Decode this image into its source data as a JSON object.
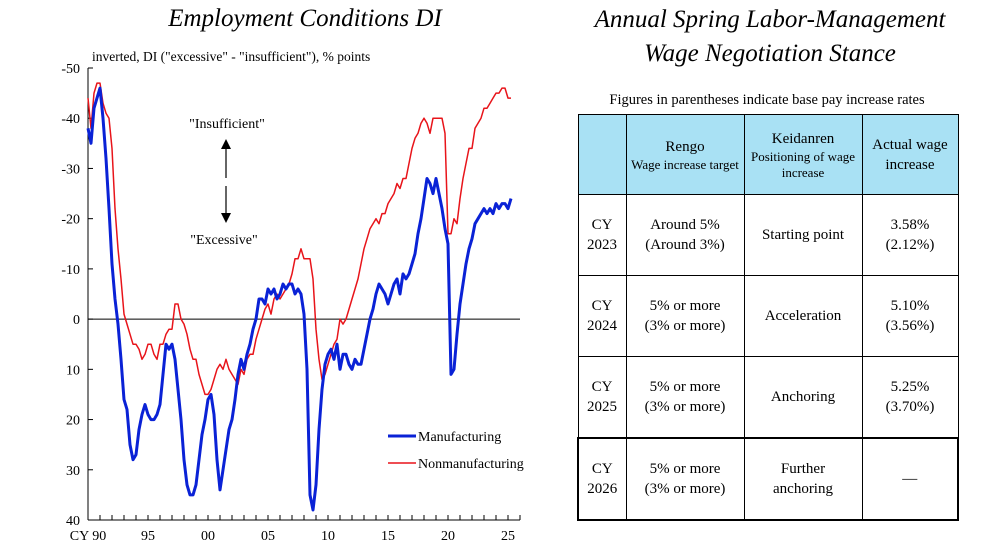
{
  "chart_data": {
    "type": "line",
    "title": "Employment Conditions DI",
    "ylabel": "inverted, DI (\"excessive\" - \"insufficient\"), % points",
    "ylim": [
      -50,
      40
    ],
    "y_inverted": true,
    "yticks": [
      -50,
      -40,
      -30,
      -20,
      -10,
      0,
      10,
      20,
      30,
      40
    ],
    "ytick_labels": [
      "-50",
      "-40",
      "-30",
      "-20",
      "-10",
      "0",
      "10",
      "20",
      "30",
      "40"
    ],
    "xlim": [
      1990,
      2026
    ],
    "xticks": [
      1990,
      1995,
      2000,
      2005,
      2010,
      2015,
      2020,
      2025
    ],
    "xtick_labels": [
      "CY 90",
      "95",
      "00",
      "05",
      "10",
      "15",
      "20",
      "25"
    ],
    "annotations": {
      "insufficient": "\"Insufficient\"",
      "excessive": "\"Excessive\""
    },
    "legend_position": "bottom-right",
    "series": [
      {
        "name": "Manufacturing",
        "color": "#0a22d6",
        "x": [
          1990.0,
          1990.25,
          1990.5,
          1990.75,
          1991.0,
          1991.25,
          1991.5,
          1991.75,
          1992.0,
          1992.25,
          1992.5,
          1992.75,
          1993.0,
          1993.25,
          1993.5,
          1993.75,
          1994.0,
          1994.25,
          1994.5,
          1994.75,
          1995.0,
          1995.25,
          1995.5,
          1995.75,
          1996.0,
          1996.25,
          1996.5,
          1996.75,
          1997.0,
          1997.25,
          1997.5,
          1997.75,
          1998.0,
          1998.25,
          1998.5,
          1998.75,
          1999.0,
          1999.25,
          1999.5,
          1999.75,
          2000.0,
          2000.25,
          2000.5,
          2000.75,
          2001.0,
          2001.25,
          2001.5,
          2001.75,
          2002.0,
          2002.25,
          2002.5,
          2002.75,
          2003.0,
          2003.25,
          2003.5,
          2003.75,
          2004.0,
          2004.25,
          2004.5,
          2004.75,
          2005.0,
          2005.25,
          2005.5,
          2005.75,
          2006.0,
          2006.25,
          2006.5,
          2006.75,
          2007.0,
          2007.25,
          2007.5,
          2007.75,
          2008.0,
          2008.25,
          2008.5,
          2008.75,
          2009.0,
          2009.25,
          2009.5,
          2009.75,
          2010.0,
          2010.25,
          2010.5,
          2010.75,
          2011.0,
          2011.25,
          2011.5,
          2011.75,
          2012.0,
          2012.25,
          2012.5,
          2012.75,
          2013.0,
          2013.25,
          2013.5,
          2013.75,
          2014.0,
          2014.25,
          2014.5,
          2014.75,
          2015.0,
          2015.25,
          2015.5,
          2015.75,
          2016.0,
          2016.25,
          2016.5,
          2016.75,
          2017.0,
          2017.25,
          2017.5,
          2017.75,
          2018.0,
          2018.25,
          2018.5,
          2018.75,
          2019.0,
          2019.25,
          2019.5,
          2019.75,
          2020.0,
          2020.25,
          2020.5,
          2020.75,
          2021.0,
          2021.25,
          2021.5,
          2021.75,
          2022.0,
          2022.25,
          2022.5,
          2022.75,
          2023.0,
          2023.25,
          2023.5,
          2023.75,
          2024.0,
          2024.25,
          2024.5,
          2024.75,
          2025.0,
          2025.25
        ],
        "values": [
          -38,
          -35,
          -42,
          -44,
          -46,
          -40,
          -32,
          -22,
          -11,
          -4,
          1,
          8,
          16,
          18,
          25,
          28,
          27,
          22,
          19,
          17,
          19,
          20,
          20,
          19,
          17,
          11,
          5,
          6,
          5,
          8,
          14,
          20,
          28,
          33,
          35,
          35,
          33,
          28,
          23,
          20,
          16,
          15,
          19,
          28,
          34,
          30,
          26,
          22,
          20,
          16,
          11,
          8,
          10,
          7,
          5,
          2,
          0,
          -4,
          -4,
          -3,
          -6,
          -5,
          -6,
          -4,
          -5,
          -7,
          -6,
          -7,
          -7,
          -5,
          -6,
          -5,
          -1,
          10,
          35,
          38,
          33,
          22,
          14,
          9,
          7,
          6,
          8,
          5,
          10,
          7,
          7,
          9,
          10,
          8,
          9,
          9,
          6,
          3,
          0,
          -2,
          -5,
          -7,
          -6,
          -5,
          -3,
          -5,
          -7,
          -8,
          -5,
          -9,
          -8,
          -9,
          -11,
          -13,
          -17,
          -20,
          -24,
          -28,
          -27,
          -25,
          -28,
          -25,
          -22,
          -18,
          -15,
          11,
          10,
          3,
          -3,
          -7,
          -11,
          -14,
          -16,
          -19,
          -20,
          -21,
          -22,
          -21,
          -22,
          -21,
          -23,
          -22,
          -23,
          -23,
          -22,
          -24
        ]
      },
      {
        "name": "Nonmanufacturing",
        "color": "#e8141a",
        "x": [
          1990.0,
          1990.25,
          1990.5,
          1990.75,
          1991.0,
          1991.25,
          1991.5,
          1991.75,
          1992.0,
          1992.25,
          1992.5,
          1992.75,
          1993.0,
          1993.25,
          1993.5,
          1993.75,
          1994.0,
          1994.25,
          1994.5,
          1994.75,
          1995.0,
          1995.25,
          1995.5,
          1995.75,
          1996.0,
          1996.25,
          1996.5,
          1996.75,
          1997.0,
          1997.25,
          1997.5,
          1997.75,
          1998.0,
          1998.25,
          1998.5,
          1998.75,
          1999.0,
          1999.25,
          1999.5,
          1999.75,
          2000.0,
          2000.25,
          2000.5,
          2000.75,
          2001.0,
          2001.25,
          2001.5,
          2001.75,
          2002.0,
          2002.25,
          2002.5,
          2002.75,
          2003.0,
          2003.25,
          2003.5,
          2003.75,
          2004.0,
          2004.25,
          2004.5,
          2004.75,
          2005.0,
          2005.25,
          2005.5,
          2005.75,
          2006.0,
          2006.25,
          2006.5,
          2006.75,
          2007.0,
          2007.25,
          2007.5,
          2007.75,
          2008.0,
          2008.25,
          2008.5,
          2008.75,
          2009.0,
          2009.25,
          2009.5,
          2009.75,
          2010.0,
          2010.25,
          2010.5,
          2010.75,
          2011.0,
          2011.25,
          2011.5,
          2011.75,
          2012.0,
          2012.25,
          2012.5,
          2012.75,
          2013.0,
          2013.25,
          2013.5,
          2013.75,
          2014.0,
          2014.25,
          2014.5,
          2014.75,
          2015.0,
          2015.25,
          2015.5,
          2015.75,
          2016.0,
          2016.25,
          2016.5,
          2016.75,
          2017.0,
          2017.25,
          2017.5,
          2017.75,
          2018.0,
          2018.25,
          2018.5,
          2018.75,
          2019.0,
          2019.25,
          2019.5,
          2019.75,
          2020.0,
          2020.25,
          2020.5,
          2020.75,
          2021.0,
          2021.25,
          2021.5,
          2021.75,
          2022.0,
          2022.25,
          2022.5,
          2022.75,
          2023.0,
          2023.25,
          2023.5,
          2023.75,
          2024.0,
          2024.25,
          2024.5,
          2024.75,
          2025.0,
          2025.25
        ],
        "values": [
          -44,
          -38,
          -45,
          -47,
          -47,
          -43,
          -41,
          -40,
          -34,
          -22,
          -14,
          -8,
          -1,
          1,
          3,
          5,
          5,
          6,
          8,
          7,
          5,
          5,
          7,
          8,
          5,
          5,
          3,
          2,
          2,
          -3,
          -3,
          0,
          1,
          3,
          6,
          8,
          8,
          11,
          13,
          15,
          15,
          14,
          12,
          10,
          9,
          10,
          8,
          10,
          11,
          12,
          13,
          10,
          11,
          8,
          7,
          7,
          4,
          2,
          0,
          -2,
          -3,
          -1,
          -4,
          -5,
          -4,
          -5,
          -6,
          -7,
          -9,
          -12,
          -12,
          -14,
          -12,
          -12,
          -12,
          -8,
          2,
          8,
          12,
          11,
          9,
          7,
          5,
          4,
          0,
          1,
          0,
          -2,
          -4,
          -6,
          -8,
          -11,
          -14,
          -16,
          -18,
          -19,
          -20,
          -19,
          -21,
          -21,
          -23,
          -24,
          -25,
          -27,
          -26,
          -28,
          -28,
          -31,
          -34,
          -36,
          -37,
          -39,
          -40,
          -39,
          -37,
          -40,
          -40,
          -40,
          -40,
          -37,
          -17,
          -17,
          -20,
          -19,
          -24,
          -28,
          -31,
          -34,
          -34,
          -38,
          -39,
          -40,
          -42,
          -42,
          -43,
          -44,
          -45,
          -45,
          -46,
          -46,
          -44,
          -44
        ]
      }
    ]
  },
  "table": {
    "title_line1": "Annual Spring Labor-Management",
    "title_line2": "Wage Negotiation Stance",
    "note": "Figures in parentheses indicate base pay increase rates",
    "header_fill": "#a9e1f4",
    "headers": [
      {
        "main": "",
        "sub": ""
      },
      {
        "main": "Rengo",
        "sub": "Wage increase target"
      },
      {
        "main": "Keidanren",
        "sub": "Positioning of wage increase"
      },
      {
        "main": "Actual wage increase",
        "sub": ""
      }
    ],
    "rows": [
      {
        "year_top": "CY",
        "year_bottom": "2023",
        "rengo_line1": "Around 5%",
        "rengo_line2": "(Around 3%)",
        "keidanren_line1": "Starting point",
        "keidanren_line2": "",
        "actual_line1": "3.58%",
        "actual_line2": "(2.12%)"
      },
      {
        "year_top": "CY",
        "year_bottom": "2024",
        "rengo_line1": "5% or more",
        "rengo_line2": "(3% or more)",
        "keidanren_line1": "Acceleration",
        "keidanren_line2": "",
        "actual_line1": "5.10%",
        "actual_line2": "(3.56%)"
      },
      {
        "year_top": "CY",
        "year_bottom": "2025",
        "rengo_line1": "5% or more",
        "rengo_line2": "(3% or more)",
        "keidanren_line1": "Anchoring",
        "keidanren_line2": "",
        "actual_line1": "5.25%",
        "actual_line2": "(3.70%)"
      },
      {
        "year_top": "CY",
        "year_bottom": "2026",
        "rengo_line1": "5% or more",
        "rengo_line2": "(3% or more)",
        "keidanren_line1": "Further",
        "keidanren_line2": "anchoring",
        "actual_line1": "―",
        "actual_line2": ""
      }
    ]
  }
}
